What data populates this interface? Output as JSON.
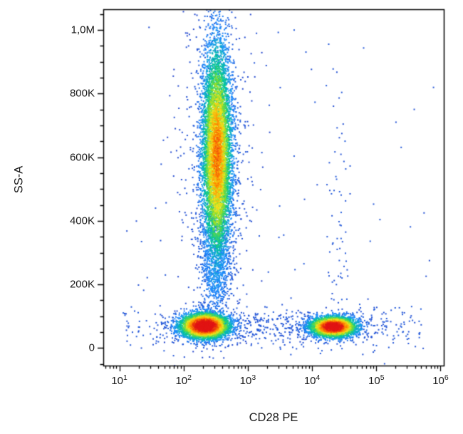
{
  "chart_data": {
    "type": "scatter",
    "subtype": "flow-cytometry-pseudocolor-density",
    "title": "",
    "xlabel": "CD28 PE",
    "ylabel": "SS-A",
    "grid": false,
    "legend": "none",
    "seed": 42,
    "x_axis": {
      "scale": "log10",
      "tick_label_base": "10",
      "min_log10": 0.75,
      "max_log10": 6.05,
      "major_tick_exponents": [
        1,
        2,
        3,
        4,
        5,
        6
      ]
    },
    "y_axis": {
      "scale": "linear",
      "min": -55000,
      "max": 1065000,
      "minor_tick_step": 50000,
      "major_ticks": [
        {
          "label": "0",
          "value": 0
        },
        {
          "label": "200K",
          "value": 200000
        },
        {
          "label": "400K",
          "value": 400000
        },
        {
          "label": "600K",
          "value": 600000
        },
        {
          "label": "800K",
          "value": 800000
        },
        {
          "label": "1,0M",
          "value": 1000000
        }
      ]
    },
    "colormap_stops": [
      [
        0.0,
        "#2440c8"
      ],
      [
        0.25,
        "#1e8fff"
      ],
      [
        0.45,
        "#00c896"
      ],
      [
        0.6,
        "#7fdc30"
      ],
      [
        0.72,
        "#f2e61e"
      ],
      [
        0.85,
        "#ff8c00"
      ],
      [
        1.0,
        "#e11414"
      ]
    ],
    "populations": [
      {
        "name": "granulocyte-column",
        "x_log10_mean": 2.52,
        "x_log10_sigma": 0.12,
        "y_mean": 610000,
        "y_sigma": 180000,
        "count": 7000,
        "peak": 0.78
      },
      {
        "name": "column-lower-tail",
        "x_log10_mean": 2.5,
        "x_log10_sigma": 0.13,
        "y_mean": 250000,
        "y_sigma": 90000,
        "count": 600,
        "peak": 0.28
      },
      {
        "name": "column-halo",
        "x_log10_mean": 2.52,
        "x_log10_sigma": 0.28,
        "y_mean": 560000,
        "y_sigma": 250000,
        "count": 700,
        "peak": 0.12
      },
      {
        "name": "cd28neg-lymphocytes",
        "x_log10_mean": 2.33,
        "x_log10_sigma": 0.2,
        "y_mean": 70000,
        "y_sigma": 21000,
        "count": 4200,
        "peak": 1.0
      },
      {
        "name": "cd28pos-lymphocytes",
        "x_log10_mean": 4.33,
        "x_log10_sigma": 0.19,
        "y_mean": 67000,
        "y_sigma": 17000,
        "count": 3200,
        "peak": 0.97
      }
    ],
    "noise": [
      {
        "name": "bottom-scatter-band",
        "x_dist": "uniform",
        "x_log10_range": [
          1.05,
          5.75
        ],
        "y_dist": "gauss",
        "y_mean": 62000,
        "y_sigma": 32000,
        "count": 380,
        "z": 0.07
      },
      {
        "name": "mid-band-trail",
        "x_dist": "uniform",
        "x_log10_range": [
          2.9,
          3.95
        ],
        "y_dist": "gauss",
        "y_mean": 65000,
        "y_sigma": 25000,
        "count": 130,
        "z": 0.07
      },
      {
        "name": "sparse-field",
        "x_dist": "uniform",
        "x_log10_range": [
          1.0,
          5.9
        ],
        "y_dist": "uniform",
        "y_range": [
          -30000,
          1020000
        ],
        "count": 90,
        "z": 0.06
      },
      {
        "name": "cd28pos-vertical-trail",
        "x_dist": "gauss",
        "x_log10_mean": 4.42,
        "x_log10_sigma": 0.09,
        "y_dist": "uniform",
        "y_range": [
          95000,
          880000
        ],
        "count": 55,
        "z": 0.07
      }
    ]
  }
}
